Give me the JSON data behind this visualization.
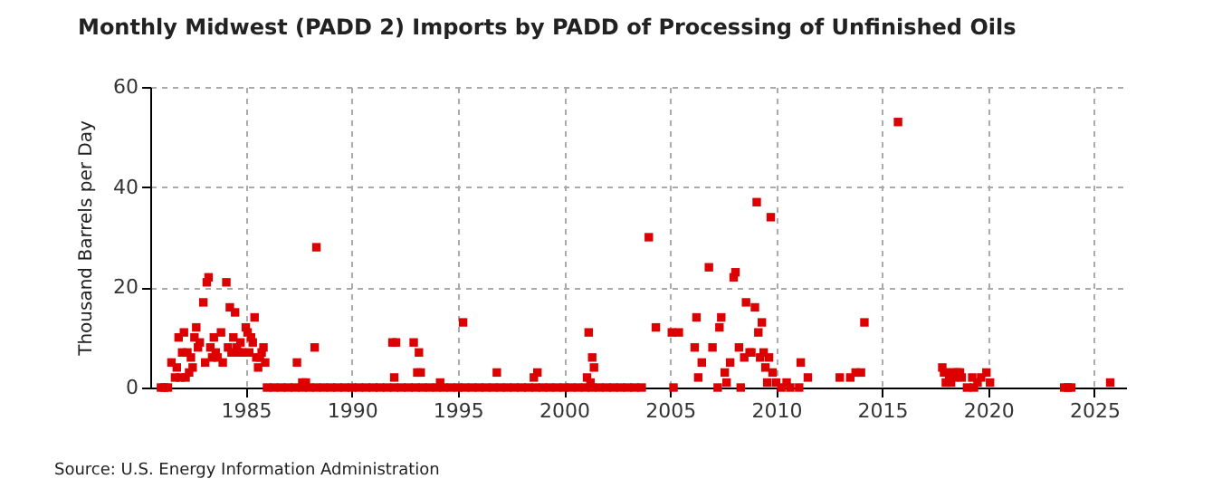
{
  "chart_data": {
    "type": "scatter",
    "title": "Monthly Midwest (PADD 2) Imports by PADD of Processing of Unfinished Oils",
    "ylabel": "Thousand Barrels per Day",
    "annotations": [
      "Source: U.S. Energy Information Administration"
    ],
    "xlim": [
      "1980-07",
      "2026-07"
    ],
    "xticks": [
      "1985",
      "1990",
      "1995",
      "2000",
      "2005",
      "2010",
      "2015",
      "2020",
      "2025"
    ],
    "ylim": [
      0,
      60
    ],
    "yticks": [
      0,
      20,
      40,
      60
    ],
    "grid": true,
    "marker": "square",
    "series": [
      {
        "color": "#dd0000",
        "x": [
          "1981-01",
          "1981-03",
          "1981-05",
          "1981-07",
          "1981-09",
          "1981-10",
          "1981-11",
          "1981-12",
          "1982-01",
          "1982-02",
          "1982-03",
          "1982-04",
          "1982-05",
          "1982-06",
          "1982-07",
          "1982-08",
          "1982-09",
          "1982-10",
          "1982-11",
          "1983-01",
          "1983-02",
          "1983-03",
          "1983-04",
          "1983-05",
          "1983-06",
          "1983-07",
          "1983-08",
          "1983-09",
          "1983-11",
          "1983-12",
          "1984-02",
          "1984-03",
          "1984-04",
          "1984-05",
          "1984-06",
          "1984-07",
          "1984-08",
          "1984-09",
          "1984-10",
          "1984-11",
          "1985-01",
          "1985-02",
          "1985-03",
          "1985-04",
          "1985-05",
          "1985-06",
          "1985-07",
          "1985-08",
          "1985-09",
          "1985-10",
          "1985-11",
          "1985-12",
          "1986-01",
          "1986-05",
          "1986-09",
          "1987-01",
          "1987-05",
          "1987-09",
          "1988-01",
          "1988-05",
          "1988-09",
          "1989-01",
          "1989-05",
          "1989-09",
          "1990-01",
          "1990-05",
          "1990-09",
          "1991-01",
          "1991-05",
          "1991-09",
          "1992-01",
          "1992-05",
          "1992-09",
          "1993-01",
          "1993-05",
          "1993-09",
          "1994-01",
          "1994-05",
          "1994-09",
          "1995-01",
          "1995-05",
          "1995-09",
          "1996-01",
          "1996-05",
          "1996-09",
          "1997-01",
          "1997-05",
          "1997-09",
          "1998-01",
          "1998-05",
          "1998-09",
          "1999-01",
          "1999-05",
          "1999-09",
          "2000-01",
          "2000-05",
          "2000-09",
          "2001-01",
          "2001-05",
          "2001-09",
          "2002-01",
          "2002-05",
          "2002-09",
          "2003-01",
          "2003-05",
          "2003-09",
          "1987-06",
          "1987-09",
          "1987-11",
          "1988-04",
          "1988-05",
          "1991-12",
          "1992-01",
          "1992-02",
          "1992-12",
          "1993-02",
          "1993-03",
          "1993-04",
          "1994-03",
          "1995-04",
          "1996-11",
          "1998-08",
          "1998-10",
          "2001-02",
          "2001-03",
          "2001-04",
          "2001-05",
          "2001-06",
          "2004-01",
          "2004-05",
          "2005-02",
          "2005-03",
          "2005-06",
          "2006-03",
          "2006-04",
          "2006-05",
          "2006-07",
          "2006-11",
          "2007-01",
          "2007-04",
          "2007-05",
          "2007-06",
          "2007-08",
          "2007-09",
          "2007-11",
          "2008-01",
          "2008-02",
          "2008-04",
          "2008-05",
          "2008-07",
          "2008-08",
          "2008-10",
          "2008-11",
          "2009-01",
          "2009-02",
          "2009-03",
          "2009-04",
          "2009-05",
          "2009-06",
          "2009-07",
          "2009-08",
          "2009-09",
          "2009-10",
          "2009-11",
          "2010-01",
          "2010-04",
          "2010-07",
          "2010-09",
          "2011-02",
          "2011-03",
          "2011-07",
          "2013-01",
          "2013-07",
          "2013-10",
          "2014-01",
          "2014-03",
          "2015-10",
          "2017-11",
          "2017-12",
          "2018-01",
          "2018-02",
          "2018-03",
          "2018-04",
          "2018-05",
          "2018-06",
          "2018-07",
          "2018-08",
          "2018-09",
          "2018-10",
          "2019-01",
          "2019-04",
          "2019-05",
          "2019-07",
          "2019-09",
          "2019-12",
          "2020-02",
          "2023-08",
          "2023-10",
          "2023-12",
          "2025-10"
        ],
        "values": [
          0,
          0,
          0,
          5,
          2,
          4,
          10,
          2,
          7,
          11,
          2,
          7,
          3,
          6,
          4,
          10,
          12,
          8,
          9,
          17,
          5,
          21,
          22,
          8,
          6,
          10,
          7,
          6,
          11,
          5,
          21,
          8,
          16,
          7,
          10,
          15,
          8,
          7,
          9,
          7,
          12,
          11,
          7,
          10,
          9,
          14,
          6,
          4,
          6,
          7,
          8,
          5,
          0,
          0,
          0,
          0,
          0,
          0,
          0,
          0,
          0,
          0,
          0,
          0,
          0,
          0,
          0,
          0,
          0,
          0,
          0,
          0,
          0,
          0,
          0,
          0,
          0,
          0,
          0,
          0,
          0,
          0,
          0,
          0,
          0,
          0,
          0,
          0,
          0,
          0,
          0,
          0,
          0,
          0,
          0,
          0,
          0,
          0,
          0,
          0,
          0,
          0,
          0,
          0,
          0,
          0,
          5,
          1,
          1,
          8,
          28,
          9,
          2,
          9,
          9,
          3,
          7,
          3,
          1,
          13,
          3,
          2,
          3,
          2,
          11,
          1,
          6,
          4,
          30,
          12,
          11,
          0,
          11,
          8,
          14,
          2,
          5,
          24,
          8,
          0,
          12,
          14,
          3,
          1,
          5,
          22,
          23,
          8,
          0,
          6,
          17,
          7,
          7,
          16,
          37,
          11,
          6,
          13,
          7,
          4,
          1,
          6,
          34,
          3,
          1,
          0,
          1,
          0,
          0,
          5,
          2,
          2,
          2,
          3,
          3,
          13,
          53,
          4,
          3,
          1,
          3,
          2,
          1,
          3,
          2,
          3,
          3,
          3,
          2,
          0,
          2,
          0,
          1,
          2,
          3,
          1,
          0,
          0,
          0,
          1
        ]
      }
    ]
  }
}
